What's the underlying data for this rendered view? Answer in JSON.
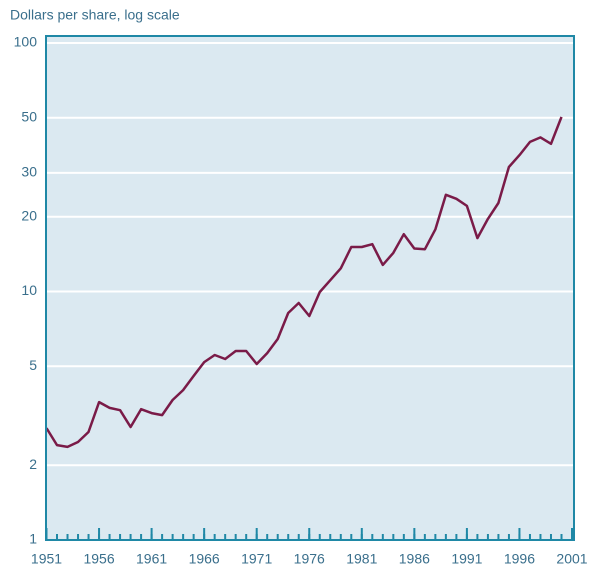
{
  "chart_data": {
    "type": "line",
    "y_label": "Dollars per share, log scale",
    "x": [
      1951,
      1952,
      1953,
      1954,
      1955,
      1956,
      1957,
      1958,
      1959,
      1960,
      1961,
      1962,
      1963,
      1964,
      1965,
      1966,
      1967,
      1968,
      1969,
      1970,
      1971,
      1972,
      1973,
      1974,
      1975,
      1976,
      1977,
      1978,
      1979,
      1980,
      1981,
      1982,
      1983,
      1984,
      1985,
      1986,
      1987,
      1988,
      1989,
      1990,
      1991,
      1992,
      1993,
      1994,
      1995,
      1996,
      1997,
      1998,
      1999,
      2000
    ],
    "values": [
      2.82,
      2.41,
      2.37,
      2.48,
      2.72,
      3.59,
      3.4,
      3.33,
      2.85,
      3.36,
      3.24,
      3.18,
      3.66,
      4.01,
      4.57,
      5.2,
      5.55,
      5.35,
      5.76,
      5.76,
      5.11,
      5.65,
      6.44,
      8.19,
      8.99,
      7.97,
      9.95,
      11.1,
      12.4,
      15.1,
      15.1,
      15.5,
      12.8,
      14.3,
      17.0,
      14.9,
      14.8,
      17.8,
      24.5,
      23.6,
      22.1,
      16.4,
      19.6,
      22.7,
      31.7,
      35.4,
      40.0,
      41.7,
      39.3,
      50.4
    ],
    "color": "#7a1b48",
    "xlim": [
      1951,
      2001
    ],
    "xticks": [
      1951,
      1956,
      1961,
      1966,
      1971,
      1976,
      1981,
      1986,
      1991,
      1996,
      2001
    ],
    "ylim": [
      1,
      100
    ],
    "yticks": [
      1,
      2,
      5,
      10,
      20,
      30,
      50,
      100
    ],
    "log_y": true,
    "grid": true
  }
}
